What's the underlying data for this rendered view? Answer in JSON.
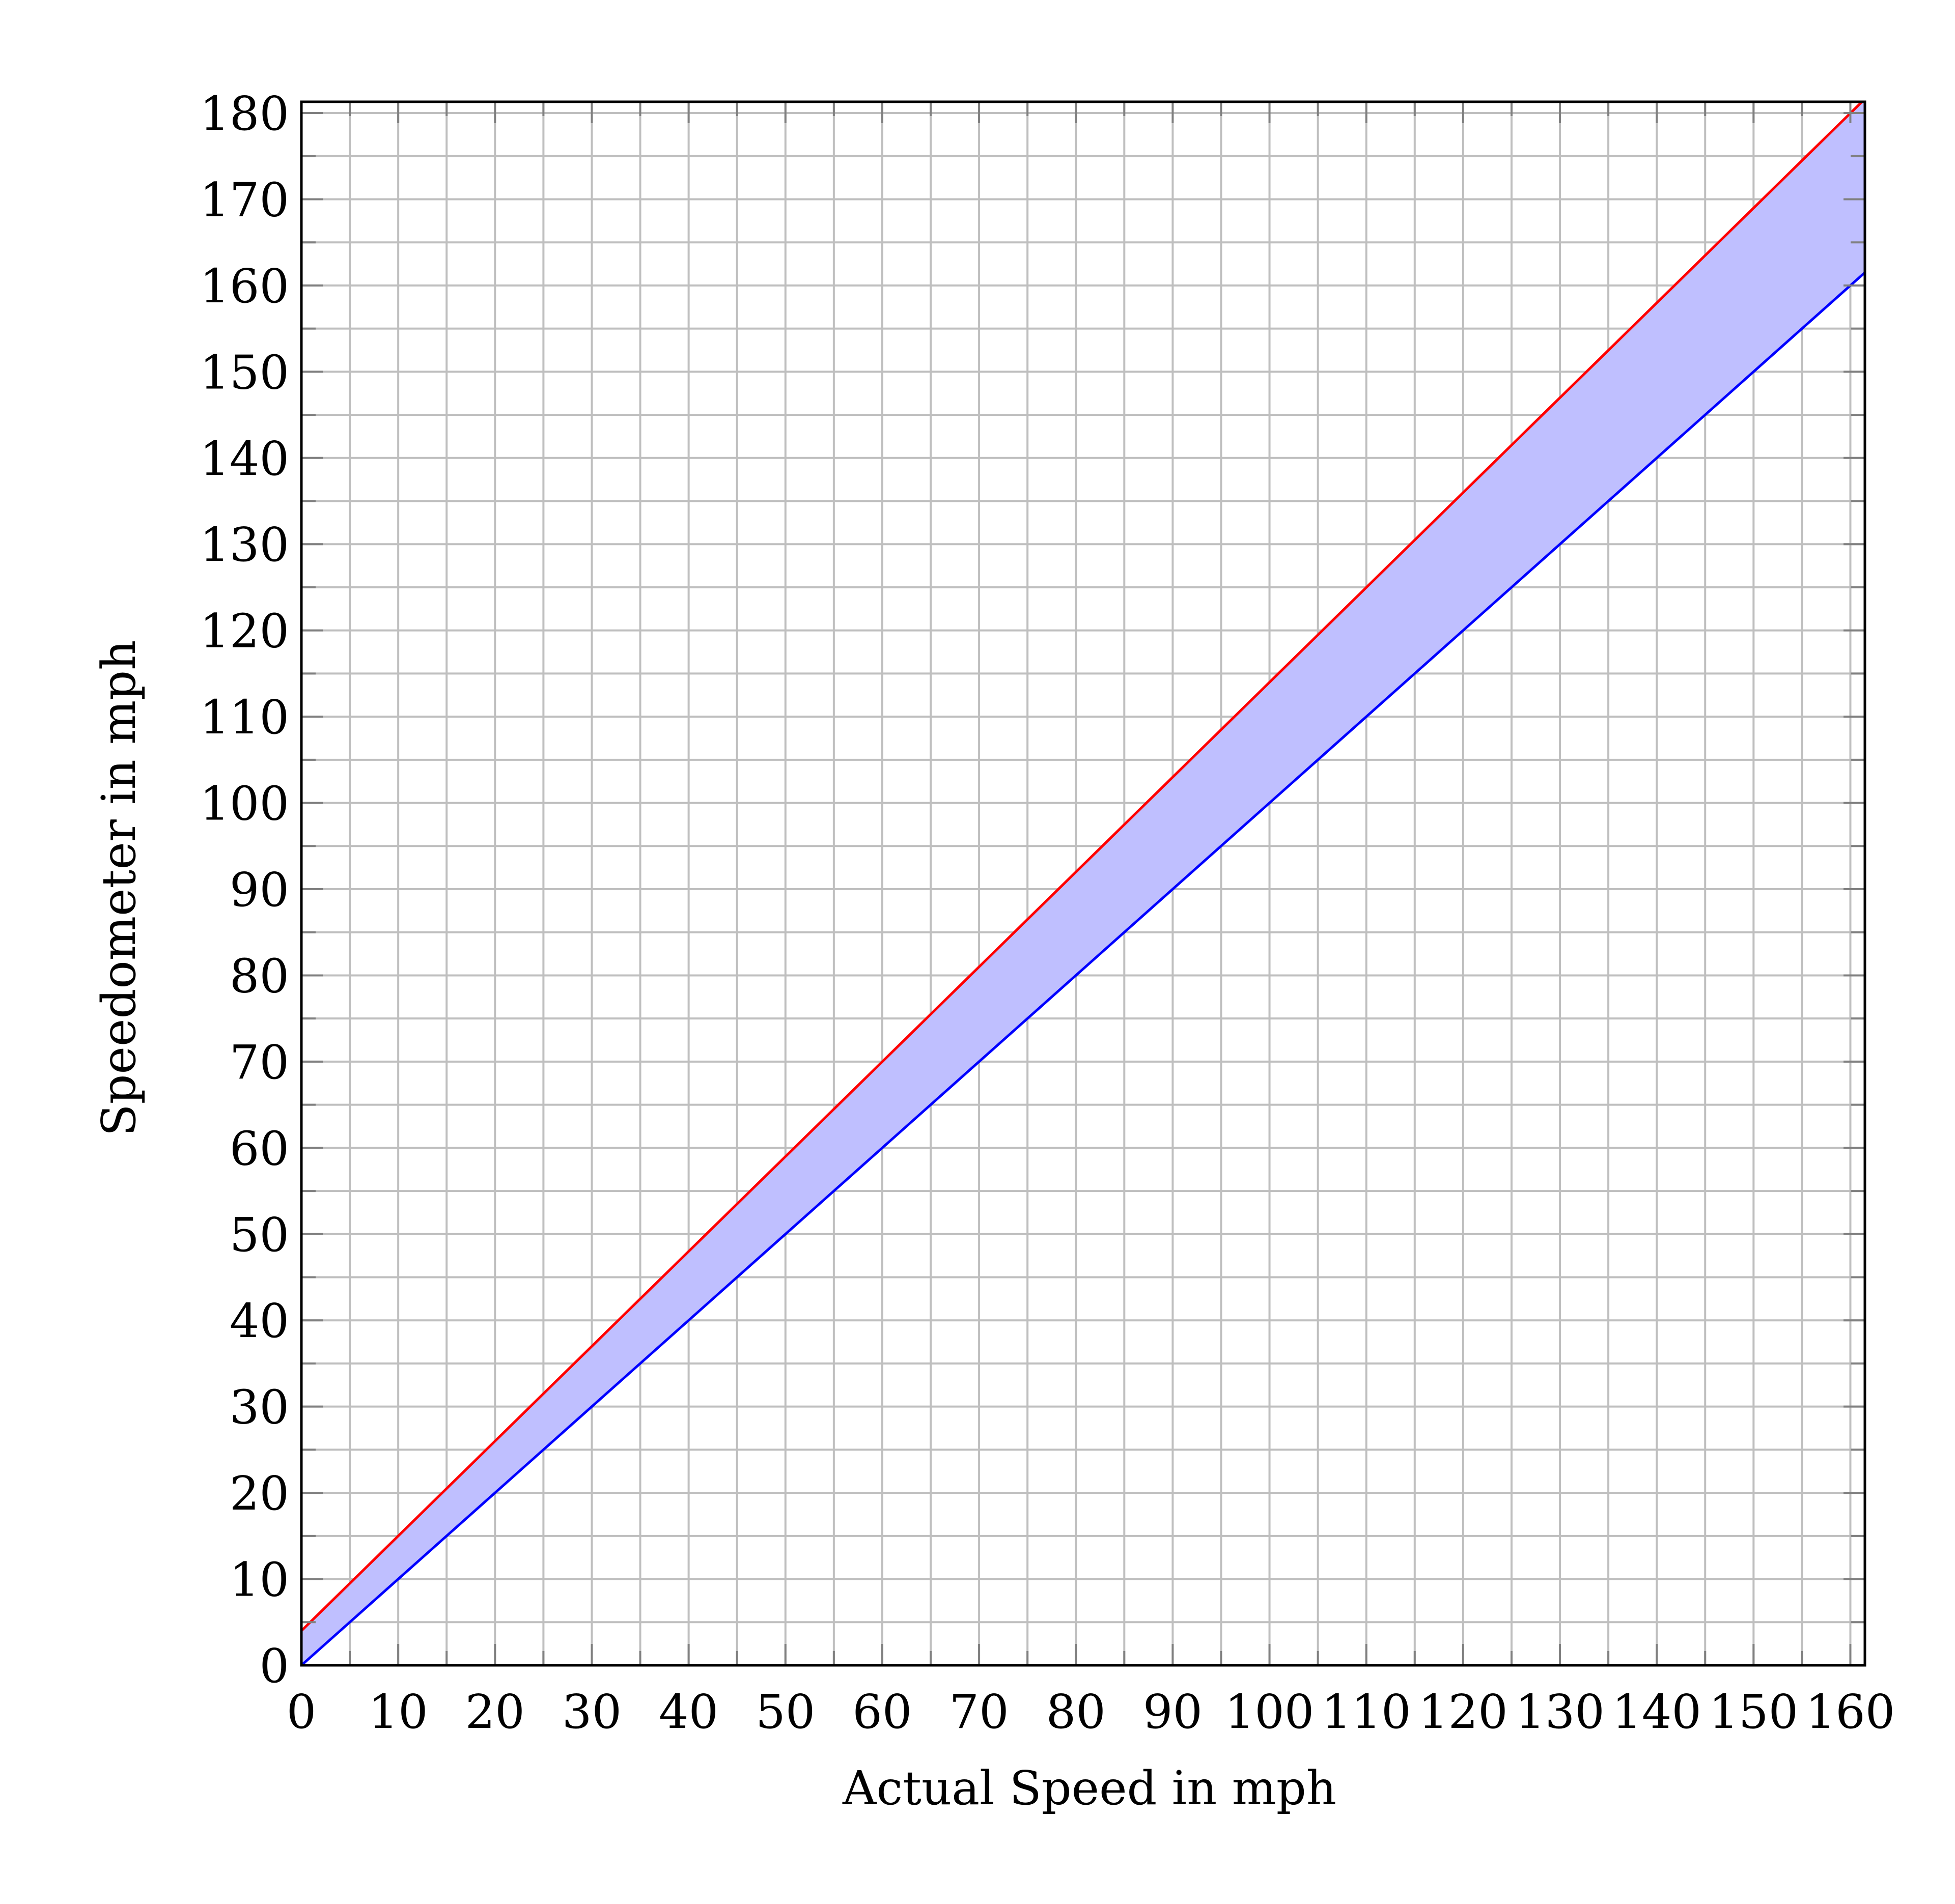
{
  "chart_data": {
    "type": "area",
    "title": "",
    "xlabel": "Actual Speed in mph",
    "ylabel": "Speedometer in mph",
    "xlim": [
      0,
      161.5
    ],
    "ylim": [
      0,
      181.3
    ],
    "xticks": [
      0,
      10,
      20,
      30,
      40,
      50,
      60,
      70,
      80,
      90,
      100,
      110,
      120,
      130,
      140,
      150,
      160
    ],
    "yticks": [
      0,
      10,
      20,
      30,
      40,
      50,
      60,
      70,
      80,
      90,
      100,
      110,
      120,
      130,
      140,
      150,
      160,
      170,
      180
    ],
    "minor_grid_step": 5,
    "grid": true,
    "series": [
      {
        "color": "#ff0000",
        "x": [
          0,
          161.2
        ],
        "y": [
          4,
          181.3
        ]
      },
      {
        "color": "#0000ff",
        "x": [
          0,
          161.5
        ],
        "y": [
          0,
          161.5
        ]
      }
    ],
    "fill_between": {
      "color": "#bfbfff",
      "upper": "y = 1.1x + 4",
      "lower": "y = x"
    },
    "colors": {
      "grid": "#bfbfbf",
      "tick": "#808080",
      "axis": "#000000"
    }
  }
}
